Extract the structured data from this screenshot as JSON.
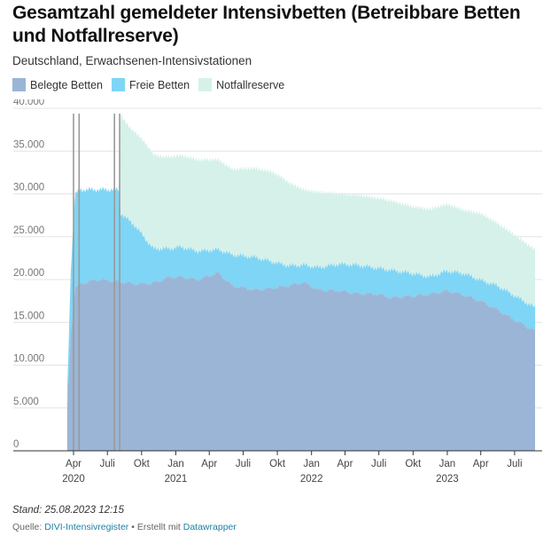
{
  "title": "Gesamtzahl gemeldeter Intensivbetten (Betreibbare Betten und Notfallreserve)",
  "subtitle": "Deutschland, Erwachsenen-Intensivstationen",
  "legend": [
    {
      "label": "Belegte Betten",
      "color": "#9ab5d6"
    },
    {
      "label": "Freie Betten",
      "color": "#7fd5f5"
    },
    {
      "label": "Notfallreserve",
      "color": "#d6f1ea"
    }
  ],
  "footer": {
    "stand": "Stand: 25.08.2023 12:15",
    "source_prefix": "Quelle: ",
    "source_link": "DIVI-Intensivregister",
    "separator": " • Erstellt mit ",
    "tool_link": "Datawrapper"
  },
  "chart_data": {
    "type": "area",
    "stacked": true,
    "ylim": [
      0,
      40000
    ],
    "y_ticks": [
      0,
      5000,
      10000,
      15000,
      20000,
      25000,
      30000,
      35000,
      40000
    ],
    "y_tick_labels": [
      "0",
      "5.000",
      "10.000",
      "15.000",
      "20.000",
      "25.000",
      "30.000",
      "35.000",
      "40.000"
    ],
    "x_range": [
      "2020-03-01",
      "2023-08-25"
    ],
    "x_ticks": [
      {
        "date": "2020-04-01",
        "label": "Apr",
        "year": "2020"
      },
      {
        "date": "2020-07-01",
        "label": "Juli",
        "year": ""
      },
      {
        "date": "2020-10-01",
        "label": "Okt",
        "year": ""
      },
      {
        "date": "2021-01-01",
        "label": "Jan",
        "year": "2021"
      },
      {
        "date": "2021-04-01",
        "label": "Apr",
        "year": ""
      },
      {
        "date": "2021-07-01",
        "label": "Juli",
        "year": ""
      },
      {
        "date": "2021-10-01",
        "label": "Okt",
        "year": ""
      },
      {
        "date": "2022-01-01",
        "label": "Jan",
        "year": "2022"
      },
      {
        "date": "2022-04-01",
        "label": "Apr",
        "year": ""
      },
      {
        "date": "2022-07-01",
        "label": "Juli",
        "year": ""
      },
      {
        "date": "2022-10-01",
        "label": "Okt",
        "year": ""
      },
      {
        "date": "2023-01-01",
        "label": "Jan",
        "year": "2023"
      },
      {
        "date": "2023-04-01",
        "label": "Apr",
        "year": ""
      },
      {
        "date": "2023-07-01",
        "label": "Juli",
        "year": ""
      }
    ],
    "marker_lines": [
      "2020-04-01",
      "2020-04-16",
      "2020-07-20",
      "2020-08-03"
    ],
    "grid": true,
    "legend_position": "top-left",
    "series": [
      {
        "name": "Belegte Betten",
        "color": "#9ab5d6",
        "points": [
          [
            "2020-03-15",
            5000
          ],
          [
            "2020-03-25",
            14000
          ],
          [
            "2020-04-05",
            19000
          ],
          [
            "2020-04-20",
            19500
          ],
          [
            "2020-06-01",
            20000
          ],
          [
            "2020-08-01",
            19800
          ],
          [
            "2020-09-15",
            19500
          ],
          [
            "2020-11-01",
            19600
          ],
          [
            "2020-12-15",
            20300
          ],
          [
            "2021-01-15",
            20300
          ],
          [
            "2021-03-01",
            20000
          ],
          [
            "2021-04-25",
            20800
          ],
          [
            "2021-06-01",
            19300
          ],
          [
            "2021-08-01",
            18800
          ],
          [
            "2021-09-15",
            19000
          ],
          [
            "2021-11-01",
            19300
          ],
          [
            "2021-12-10",
            19700
          ],
          [
            "2022-01-20",
            18800
          ],
          [
            "2022-03-15",
            18700
          ],
          [
            "2022-05-01",
            18400
          ],
          [
            "2022-07-01",
            18300
          ],
          [
            "2022-08-01",
            17900
          ],
          [
            "2022-10-01",
            18100
          ],
          [
            "2022-11-15",
            18300
          ],
          [
            "2023-01-01",
            18700
          ],
          [
            "2023-02-15",
            18200
          ],
          [
            "2023-04-01",
            17500
          ],
          [
            "2023-05-15",
            16500
          ],
          [
            "2023-07-01",
            15300
          ],
          [
            "2023-08-25",
            14000
          ]
        ]
      },
      {
        "name": "Freie Betten",
        "color": "#7fd5f5",
        "points": [
          [
            "2020-03-15",
            2000
          ],
          [
            "2020-03-25",
            7500
          ],
          [
            "2020-04-05",
            11000
          ],
          [
            "2020-04-20",
            11000
          ],
          [
            "2020-06-01",
            10500
          ],
          [
            "2020-08-01",
            10700
          ],
          [
            "2020-08-05",
            8000
          ],
          [
            "2020-09-15",
            6700
          ],
          [
            "2020-11-01",
            4000
          ],
          [
            "2020-12-15",
            3300
          ],
          [
            "2021-01-15",
            3500
          ],
          [
            "2021-03-01",
            3300
          ],
          [
            "2021-04-25",
            2700
          ],
          [
            "2021-06-01",
            3600
          ],
          [
            "2021-08-01",
            3800
          ],
          [
            "2021-09-15",
            3100
          ],
          [
            "2021-11-01",
            2300
          ],
          [
            "2021-12-10",
            2000
          ],
          [
            "2022-01-20",
            2600
          ],
          [
            "2022-03-15",
            3100
          ],
          [
            "2022-05-01",
            3300
          ],
          [
            "2022-07-01",
            3000
          ],
          [
            "2022-08-01",
            3200
          ],
          [
            "2022-10-01",
            2600
          ],
          [
            "2022-11-15",
            2000
          ],
          [
            "2023-01-01",
            2300
          ],
          [
            "2023-02-15",
            2500
          ],
          [
            "2023-04-01",
            2400
          ],
          [
            "2023-05-15",
            2800
          ],
          [
            "2023-07-01",
            2800
          ],
          [
            "2023-08-25",
            2700
          ]
        ]
      },
      {
        "name": "Notfallreserve",
        "color": "#d6f1ea",
        "points": [
          [
            "2020-03-15",
            0
          ],
          [
            "2020-08-01",
            0
          ],
          [
            "2020-08-05",
            11500
          ],
          [
            "2020-09-01",
            10900
          ],
          [
            "2020-10-15",
            11200
          ],
          [
            "2020-12-01",
            10700
          ],
          [
            "2021-01-15",
            10700
          ],
          [
            "2021-03-01",
            10700
          ],
          [
            "2021-04-25",
            10500
          ],
          [
            "2021-06-01",
            10000
          ],
          [
            "2021-08-01",
            10400
          ],
          [
            "2021-09-15",
            10500
          ],
          [
            "2021-10-15",
            10100
          ],
          [
            "2021-12-10",
            8800
          ],
          [
            "2022-01-20",
            8800
          ],
          [
            "2022-03-15",
            8200
          ],
          [
            "2022-05-01",
            8200
          ],
          [
            "2022-07-01",
            8200
          ],
          [
            "2022-08-01",
            8100
          ],
          [
            "2022-10-01",
            7800
          ],
          [
            "2022-11-15",
            7900
          ],
          [
            "2023-01-01",
            7800
          ],
          [
            "2023-02-15",
            7400
          ],
          [
            "2023-04-01",
            7800
          ],
          [
            "2023-05-15",
            7300
          ],
          [
            "2023-07-01",
            7100
          ],
          [
            "2023-08-25",
            6800
          ]
        ]
      }
    ]
  }
}
